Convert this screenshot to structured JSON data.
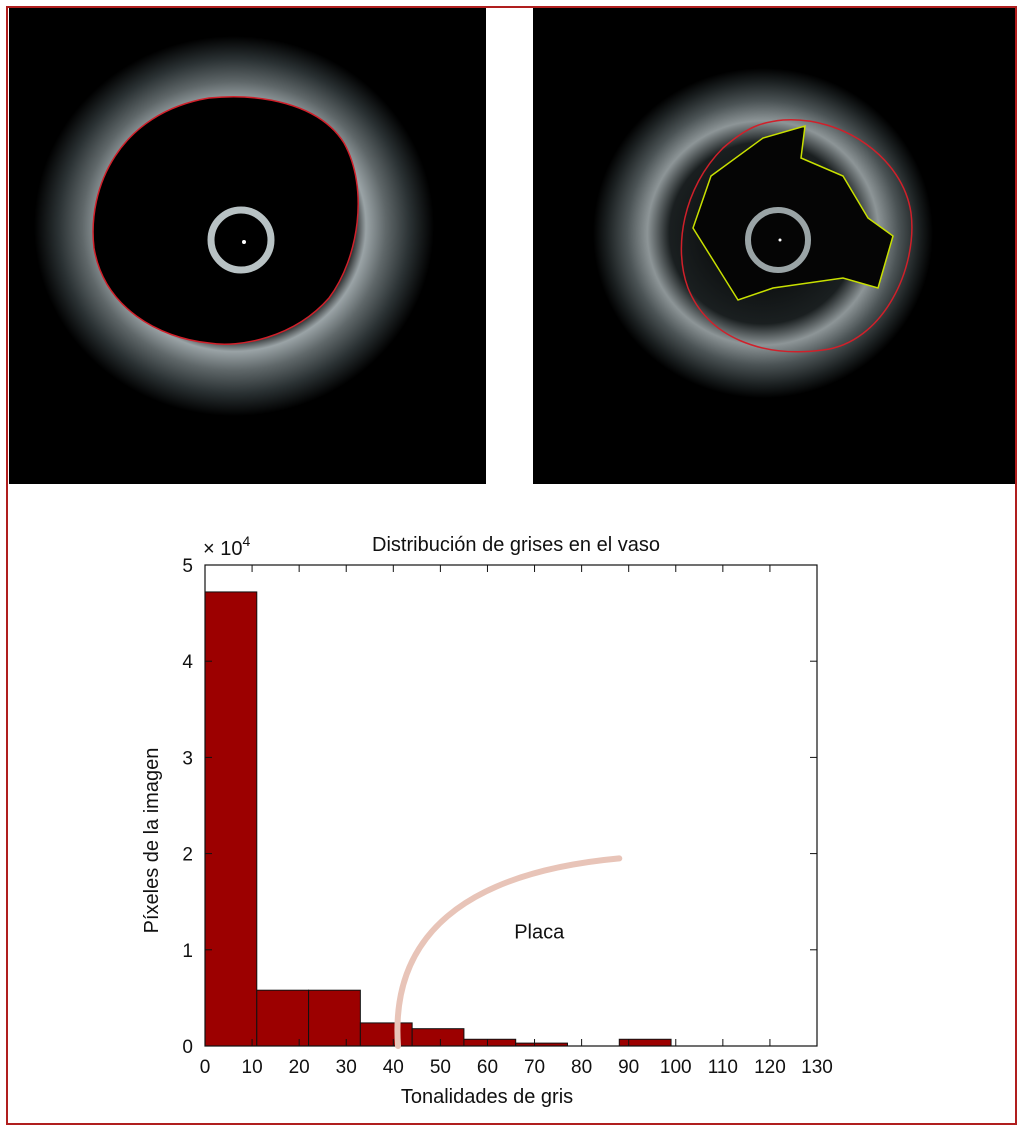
{
  "figure": {
    "border_color": "#b01e1e",
    "panels": [
      {
        "name": "ivus-vessel-contour",
        "contours": [
          "red"
        ]
      },
      {
        "name": "ivus-plaque-contour",
        "contours": [
          "red",
          "yellow-green"
        ]
      }
    ]
  },
  "chart_data": {
    "type": "bar",
    "title": "Distribución de grises en el vaso",
    "xlabel": "Tonalidades de gris",
    "ylabel": "Píxeles de la imagen",
    "y_multiplier": "× 10",
    "y_multiplier_exp": "4",
    "xlim": [
      0,
      130
    ],
    "ylim": [
      0,
      5
    ],
    "x_ticks": [
      "0",
      "10",
      "20",
      "30",
      "40",
      "50",
      "60",
      "70",
      "80",
      "90",
      "100",
      "110",
      "120",
      "130"
    ],
    "y_ticks": [
      "0",
      "1",
      "2",
      "3",
      "4",
      "5"
    ],
    "bar_color": "#9c0000",
    "bins": [
      {
        "x0": 0,
        "x1": 11,
        "value": 4.72
      },
      {
        "x0": 11,
        "x1": 22,
        "value": 0.58
      },
      {
        "x0": 22,
        "x1": 33,
        "value": 0.58
      },
      {
        "x0": 33,
        "x1": 44,
        "value": 0.24
      },
      {
        "x0": 44,
        "x1": 55,
        "value": 0.18
      },
      {
        "x0": 55,
        "x1": 66,
        "value": 0.07
      },
      {
        "x0": 66,
        "x1": 77,
        "value": 0.03
      },
      {
        "x0": 77,
        "x1": 88,
        "value": 0.0
      },
      {
        "x0": 88,
        "x1": 99,
        "value": 0.07
      }
    ],
    "annotation": {
      "text": "Placa",
      "arrow_color": "#e8c4b8"
    },
    "grid": false
  }
}
